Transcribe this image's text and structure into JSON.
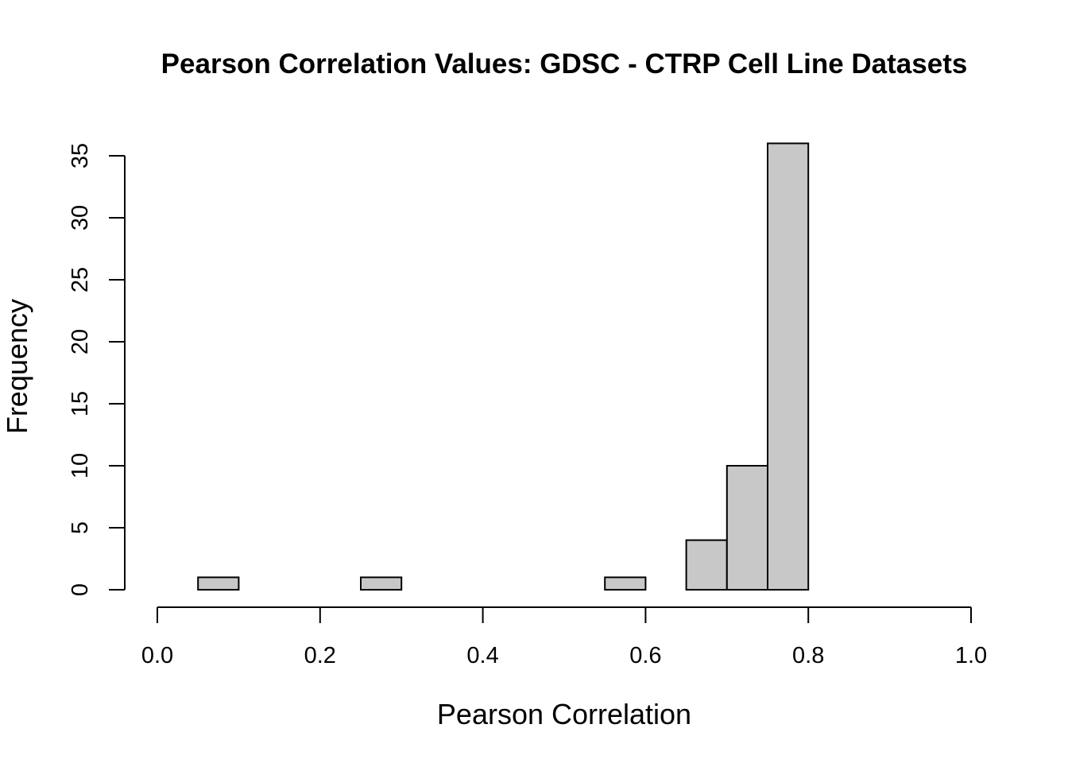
{
  "chart_data": {
    "type": "bar",
    "title": "Pearson Correlation Values: GDSC - CTRP Cell Line Datasets",
    "xlabel": "Pearson Correlation",
    "ylabel": "Frequency",
    "xlim": [
      0.0,
      1.0
    ],
    "ylim": [
      0,
      35
    ],
    "x_ticks": [
      "0.0",
      "0.2",
      "0.4",
      "0.6",
      "0.8",
      "1.0"
    ],
    "y_ticks": [
      "0",
      "5",
      "10",
      "15",
      "20",
      "25",
      "30",
      "35"
    ],
    "bin_width": 0.05,
    "bins": [
      {
        "start": 0.05,
        "end": 0.1,
        "count": 1
      },
      {
        "start": 0.1,
        "end": 0.15,
        "count": 0
      },
      {
        "start": 0.15,
        "end": 0.2,
        "count": 0
      },
      {
        "start": 0.2,
        "end": 0.25,
        "count": 0
      },
      {
        "start": 0.25,
        "end": 0.3,
        "count": 1
      },
      {
        "start": 0.3,
        "end": 0.35,
        "count": 0
      },
      {
        "start": 0.35,
        "end": 0.4,
        "count": 0
      },
      {
        "start": 0.4,
        "end": 0.45,
        "count": 0
      },
      {
        "start": 0.45,
        "end": 0.5,
        "count": 0
      },
      {
        "start": 0.5,
        "end": 0.55,
        "count": 0
      },
      {
        "start": 0.55,
        "end": 0.6,
        "count": 1
      },
      {
        "start": 0.6,
        "end": 0.65,
        "count": 0
      },
      {
        "start": 0.65,
        "end": 0.7,
        "count": 4
      },
      {
        "start": 0.7,
        "end": 0.75,
        "count": 10
      },
      {
        "start": 0.75,
        "end": 0.8,
        "count": 36
      }
    ],
    "grid": false,
    "colors": {
      "bar_fill": "#c8c8c8",
      "bar_stroke": "#000000"
    }
  }
}
